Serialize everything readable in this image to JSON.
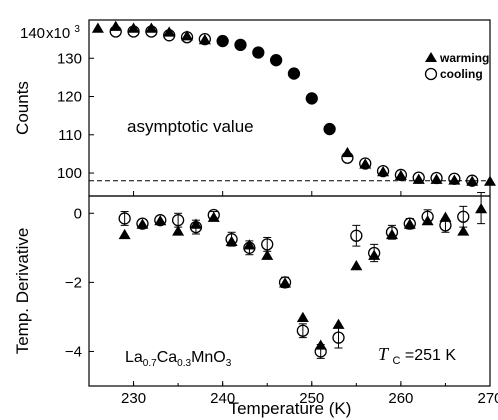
{
  "chart_data": [
    {
      "type": "scatter",
      "panel": "top",
      "ylabel": "Counts",
      "y_multiplier_label": "x10",
      "y_multiplier_exp": "3",
      "ylim": [
        94,
        140
      ],
      "yticks": [
        100,
        110,
        120,
        130,
        140
      ],
      "ytick_labels": [
        "100",
        "110",
        "120",
        "130",
        "140"
      ],
      "grid": false,
      "legend": "top-right",
      "annotation": "asymptotic value",
      "asymptote": 98,
      "series": [
        {
          "name": "warming",
          "marker": "filled-triangle",
          "x": [
            226,
            228,
            230,
            232,
            234,
            236,
            238,
            240,
            242,
            244,
            246,
            248,
            250,
            252,
            254,
            256,
            258,
            260,
            262,
            264,
            266,
            268,
            270
          ],
          "y": [
            138,
            138.5,
            138,
            138,
            137,
            136,
            135,
            134.5,
            133.5,
            131.5,
            129.5,
            126,
            119.5,
            111.5,
            105.5,
            102.5,
            100.5,
            99.5,
            98.5,
            98.5,
            98.3,
            98,
            98
          ]
        },
        {
          "name": "cooling",
          "marker": "open-circle",
          "x": [
            228,
            230,
            232,
            234,
            236,
            238,
            240,
            242,
            244,
            246,
            248,
            250,
            252,
            254,
            256,
            258,
            260,
            262,
            264,
            266,
            268
          ],
          "y": [
            137,
            137,
            137,
            136,
            135.5,
            135,
            134.5,
            133.5,
            131.5,
            129.5,
            126,
            119.5,
            111.5,
            104,
            102.5,
            100.5,
            99.5,
            98.8,
            98.7,
            98.5,
            98
          ]
        }
      ]
    },
    {
      "type": "scatter",
      "panel": "bottom",
      "ylabel": "Temp. Derivative",
      "xlabel": "Temperature (K)",
      "xlim": [
        225,
        270
      ],
      "xticks": [
        230,
        240,
        250,
        260,
        270
      ],
      "ylim": [
        -5,
        0.5
      ],
      "yticks": [
        0,
        -2,
        -4
      ],
      "ytick_labels": [
        "0",
        "−2",
        "−4"
      ],
      "grid": false,
      "series": [
        {
          "name": "warming",
          "marker": "filled-triangle",
          "x": [
            229,
            231,
            233,
            235,
            237,
            239,
            241,
            243,
            245,
            247,
            249,
            251,
            253,
            255,
            257,
            259,
            261,
            263,
            265,
            267,
            269
          ],
          "y": [
            -0.6,
            -0.3,
            -0.2,
            -0.5,
            -0.3,
            -0.1,
            -0.8,
            -0.9,
            -1.2,
            -2.0,
            -3.0,
            -3.8,
            -3.2,
            -1.5,
            -1.2,
            -0.6,
            -0.3,
            -0.2,
            -0.1,
            -0.5,
            0.15
          ],
          "err": [
            0,
            0,
            0,
            0,
            0,
            0,
            0,
            0,
            0,
            0,
            0,
            0,
            0,
            0,
            0,
            0,
            0,
            0,
            0,
            0,
            0.45
          ]
        },
        {
          "name": "cooling",
          "marker": "open-circle",
          "x": [
            229,
            231,
            233,
            235,
            237,
            239,
            241,
            243,
            245,
            247,
            249,
            251,
            253,
            255,
            257,
            259,
            261,
            263,
            265,
            267
          ],
          "y": [
            -0.15,
            -0.3,
            -0.2,
            -0.2,
            -0.4,
            -0.05,
            -0.75,
            -1.0,
            -0.9,
            -2.0,
            -3.4,
            -4.0,
            -3.6,
            -0.65,
            -1.15,
            -0.55,
            -0.3,
            -0.1,
            -0.35,
            -0.1
          ],
          "err": [
            0.2,
            0,
            0,
            0.2,
            0.2,
            0.1,
            0.2,
            0.2,
            0.2,
            0.15,
            0.2,
            0.2,
            0.3,
            0.3,
            0.25,
            0.2,
            0.15,
            0.2,
            0.2,
            0.3
          ]
        }
      ],
      "annotation_formula": {
        "parts": [
          {
            "t": "La",
            "sub": false
          },
          {
            "t": "0.7",
            "sub": true
          },
          {
            "t": "Ca",
            "sub": false
          },
          {
            "t": "0.3",
            "sub": true
          },
          {
            "t": "MnO",
            "sub": false
          },
          {
            "t": "3",
            "sub": true
          }
        ]
      },
      "annotation_tc": {
        "symbol": "T",
        "subscript": "C",
        "value": "=251 K"
      }
    }
  ]
}
